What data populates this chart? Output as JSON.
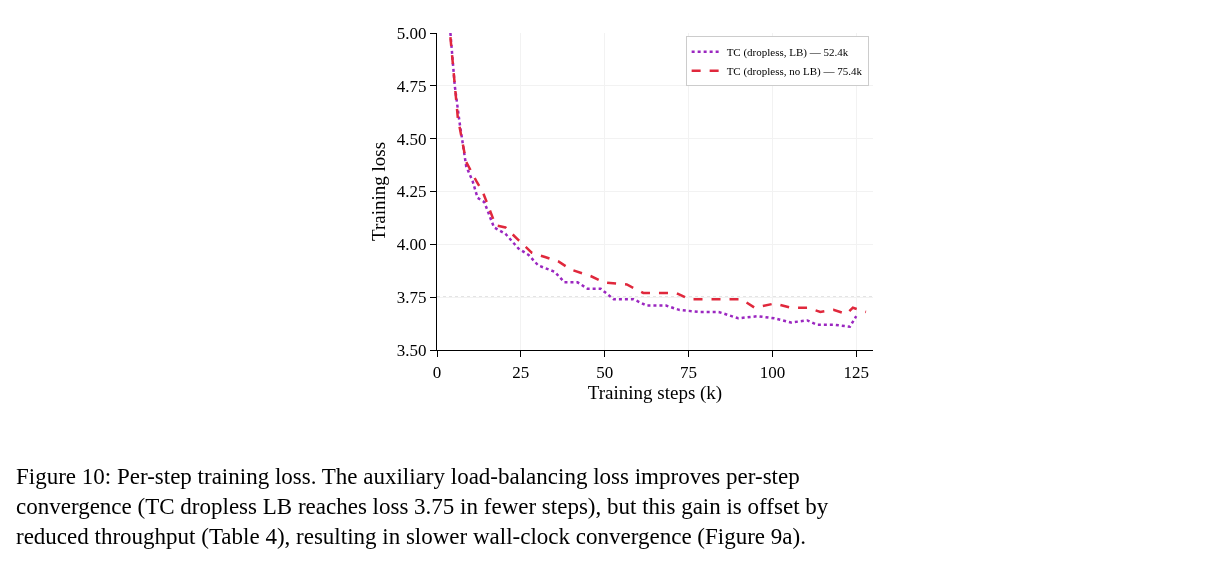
{
  "chart_data": {
    "type": "line",
    "xlabel": "Training steps (k)",
    "ylabel": "Training loss",
    "xlim": [
      0,
      130
    ],
    "ylim": [
      3.5,
      5.0
    ],
    "xticks": [
      0,
      25,
      50,
      75,
      100,
      125
    ],
    "yticks": [
      {
        "value": 3.5,
        "label": "3.50"
      },
      {
        "value": 3.75,
        "label": "3.75"
      },
      {
        "value": 4.0,
        "label": "4.00"
      },
      {
        "value": 4.25,
        "label": "4.25"
      },
      {
        "value": 4.5,
        "label": "4.50"
      },
      {
        "value": 4.75,
        "label": "4.75"
      },
      {
        "value": 5.0,
        "label": "5.00"
      }
    ],
    "grid": true,
    "legend": "top right",
    "tick_labels": "xy",
    "series": [
      {
        "name": "TC (dropless, LB) — 52.4k",
        "color": "#9b27c0",
        "line_style": "dotted",
        "x": [
          4.0,
          5.3,
          6.7,
          8.7,
          10.6,
          12.1,
          14.1,
          17.0,
          20.4,
          24.3,
          27.3,
          30.2,
          35.1,
          38.0,
          41.9,
          44.9,
          48.8,
          52.7,
          58.6,
          62.5,
          68.3,
          72.2,
          78.1,
          84.0,
          89.8,
          95.7,
          100.6,
          105.5,
          110.4,
          113.3,
          118.2,
          123.1,
          125.0
        ],
        "values": [
          5.0,
          4.75,
          4.58,
          4.37,
          4.3,
          4.22,
          4.2,
          4.08,
          4.05,
          3.98,
          3.95,
          3.9,
          3.87,
          3.82,
          3.82,
          3.79,
          3.79,
          3.74,
          3.74,
          3.71,
          3.71,
          3.69,
          3.68,
          3.68,
          3.65,
          3.66,
          3.65,
          3.63,
          3.64,
          3.62,
          3.62,
          3.61,
          3.66
        ]
      },
      {
        "name": "TC (dropless, no LB) — 75.4k",
        "color": "#e0283c",
        "line_style": "dashed",
        "x": [
          4.0,
          6.2,
          8.7,
          11.7,
          13.6,
          17.5,
          20.4,
          24.3,
          28.3,
          32.2,
          36.1,
          40.0,
          45.8,
          49.8,
          56.6,
          61.5,
          66.4,
          71.3,
          75.2,
          81.0,
          85.9,
          90.8,
          94.7,
          100.6,
          105.5,
          110.4,
          114.3,
          118.2,
          122.1,
          124.0,
          127.9
        ],
        "values": [
          4.98,
          4.6,
          4.39,
          4.3,
          4.25,
          4.09,
          4.08,
          4.02,
          3.96,
          3.94,
          3.92,
          3.88,
          3.85,
          3.82,
          3.81,
          3.77,
          3.77,
          3.77,
          3.74,
          3.74,
          3.74,
          3.74,
          3.7,
          3.72,
          3.7,
          3.7,
          3.68,
          3.69,
          3.67,
          3.7,
          3.68
        ]
      }
    ],
    "ref_lines": [
      {
        "axis": "y",
        "value": 3.75,
        "color": "#b0b0b0",
        "line_style": "dotted"
      }
    ],
    "annotations": [
      "Figure 10: Per-step training loss. The auxiliary load-balancing loss improves per-step convergence (TC dropless LB reaches loss 3.75 in fewer steps), but this gain is offset by reduced throughput (Table 4), resulting in slower wall-clock convergence (Figure 9a)."
    ]
  }
}
